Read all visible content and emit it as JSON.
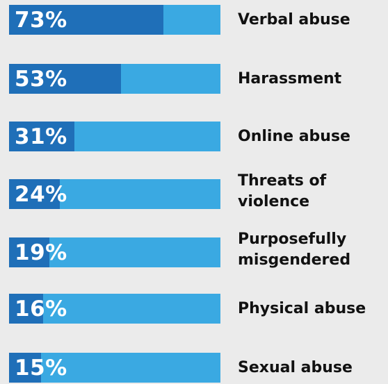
{
  "chart_data": {
    "type": "bar",
    "orientation": "horizontal",
    "categories": [
      "Verbal abuse",
      "Harassment",
      "Online abuse",
      "Threats of violence",
      "Purposefully misgendered",
      "Physical abuse",
      "Sexual abuse"
    ],
    "values": [
      73,
      53,
      31,
      24,
      19,
      16,
      15
    ],
    "value_labels": [
      "73%",
      "53%",
      "31%",
      "24%",
      "19%",
      "16%",
      "15%"
    ],
    "xlim": [
      0,
      100
    ],
    "grid": false,
    "legend": "none",
    "colors": {
      "fill": "#1f6fb8",
      "track": "#3aa9e2",
      "value_text": "#ffffff",
      "label_text": "#111111",
      "background": "#ebebeb"
    }
  }
}
